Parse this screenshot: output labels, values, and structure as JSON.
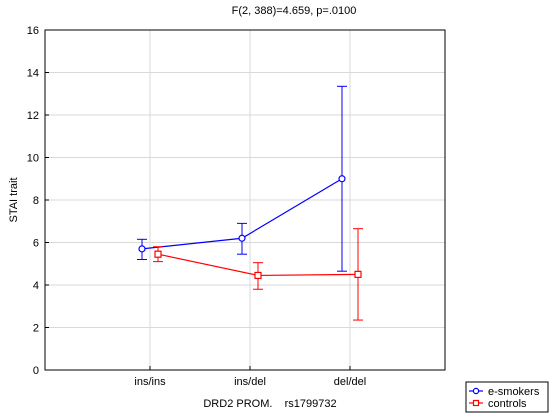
{
  "chart_data": {
    "type": "line",
    "title": "F(2, 388)=4.659, p=.0100",
    "xlabel": "DRD2 PROM.    rs1799732",
    "ylabel": "STAI trait",
    "categories": [
      "ins/ins",
      "ins/del",
      "del/del"
    ],
    "ylim": [
      0,
      16
    ],
    "yticks": [
      0,
      2,
      4,
      6,
      8,
      10,
      12,
      14,
      16
    ],
    "grid": true,
    "legend_position": "bottom-right",
    "series": [
      {
        "name": "e-smokers",
        "color": "#0000ff",
        "marker": "circle",
        "values": [
          5.7,
          6.2,
          9.0
        ],
        "err_low": [
          5.2,
          5.45,
          4.65
        ],
        "err_high": [
          6.15,
          6.9,
          13.35
        ]
      },
      {
        "name": "controls",
        "color": "#ff0000",
        "marker": "square",
        "values": [
          5.45,
          4.45,
          4.5
        ],
        "err_low": [
          5.1,
          3.8,
          2.35
        ],
        "err_high": [
          5.8,
          5.05,
          6.65
        ]
      }
    ]
  }
}
